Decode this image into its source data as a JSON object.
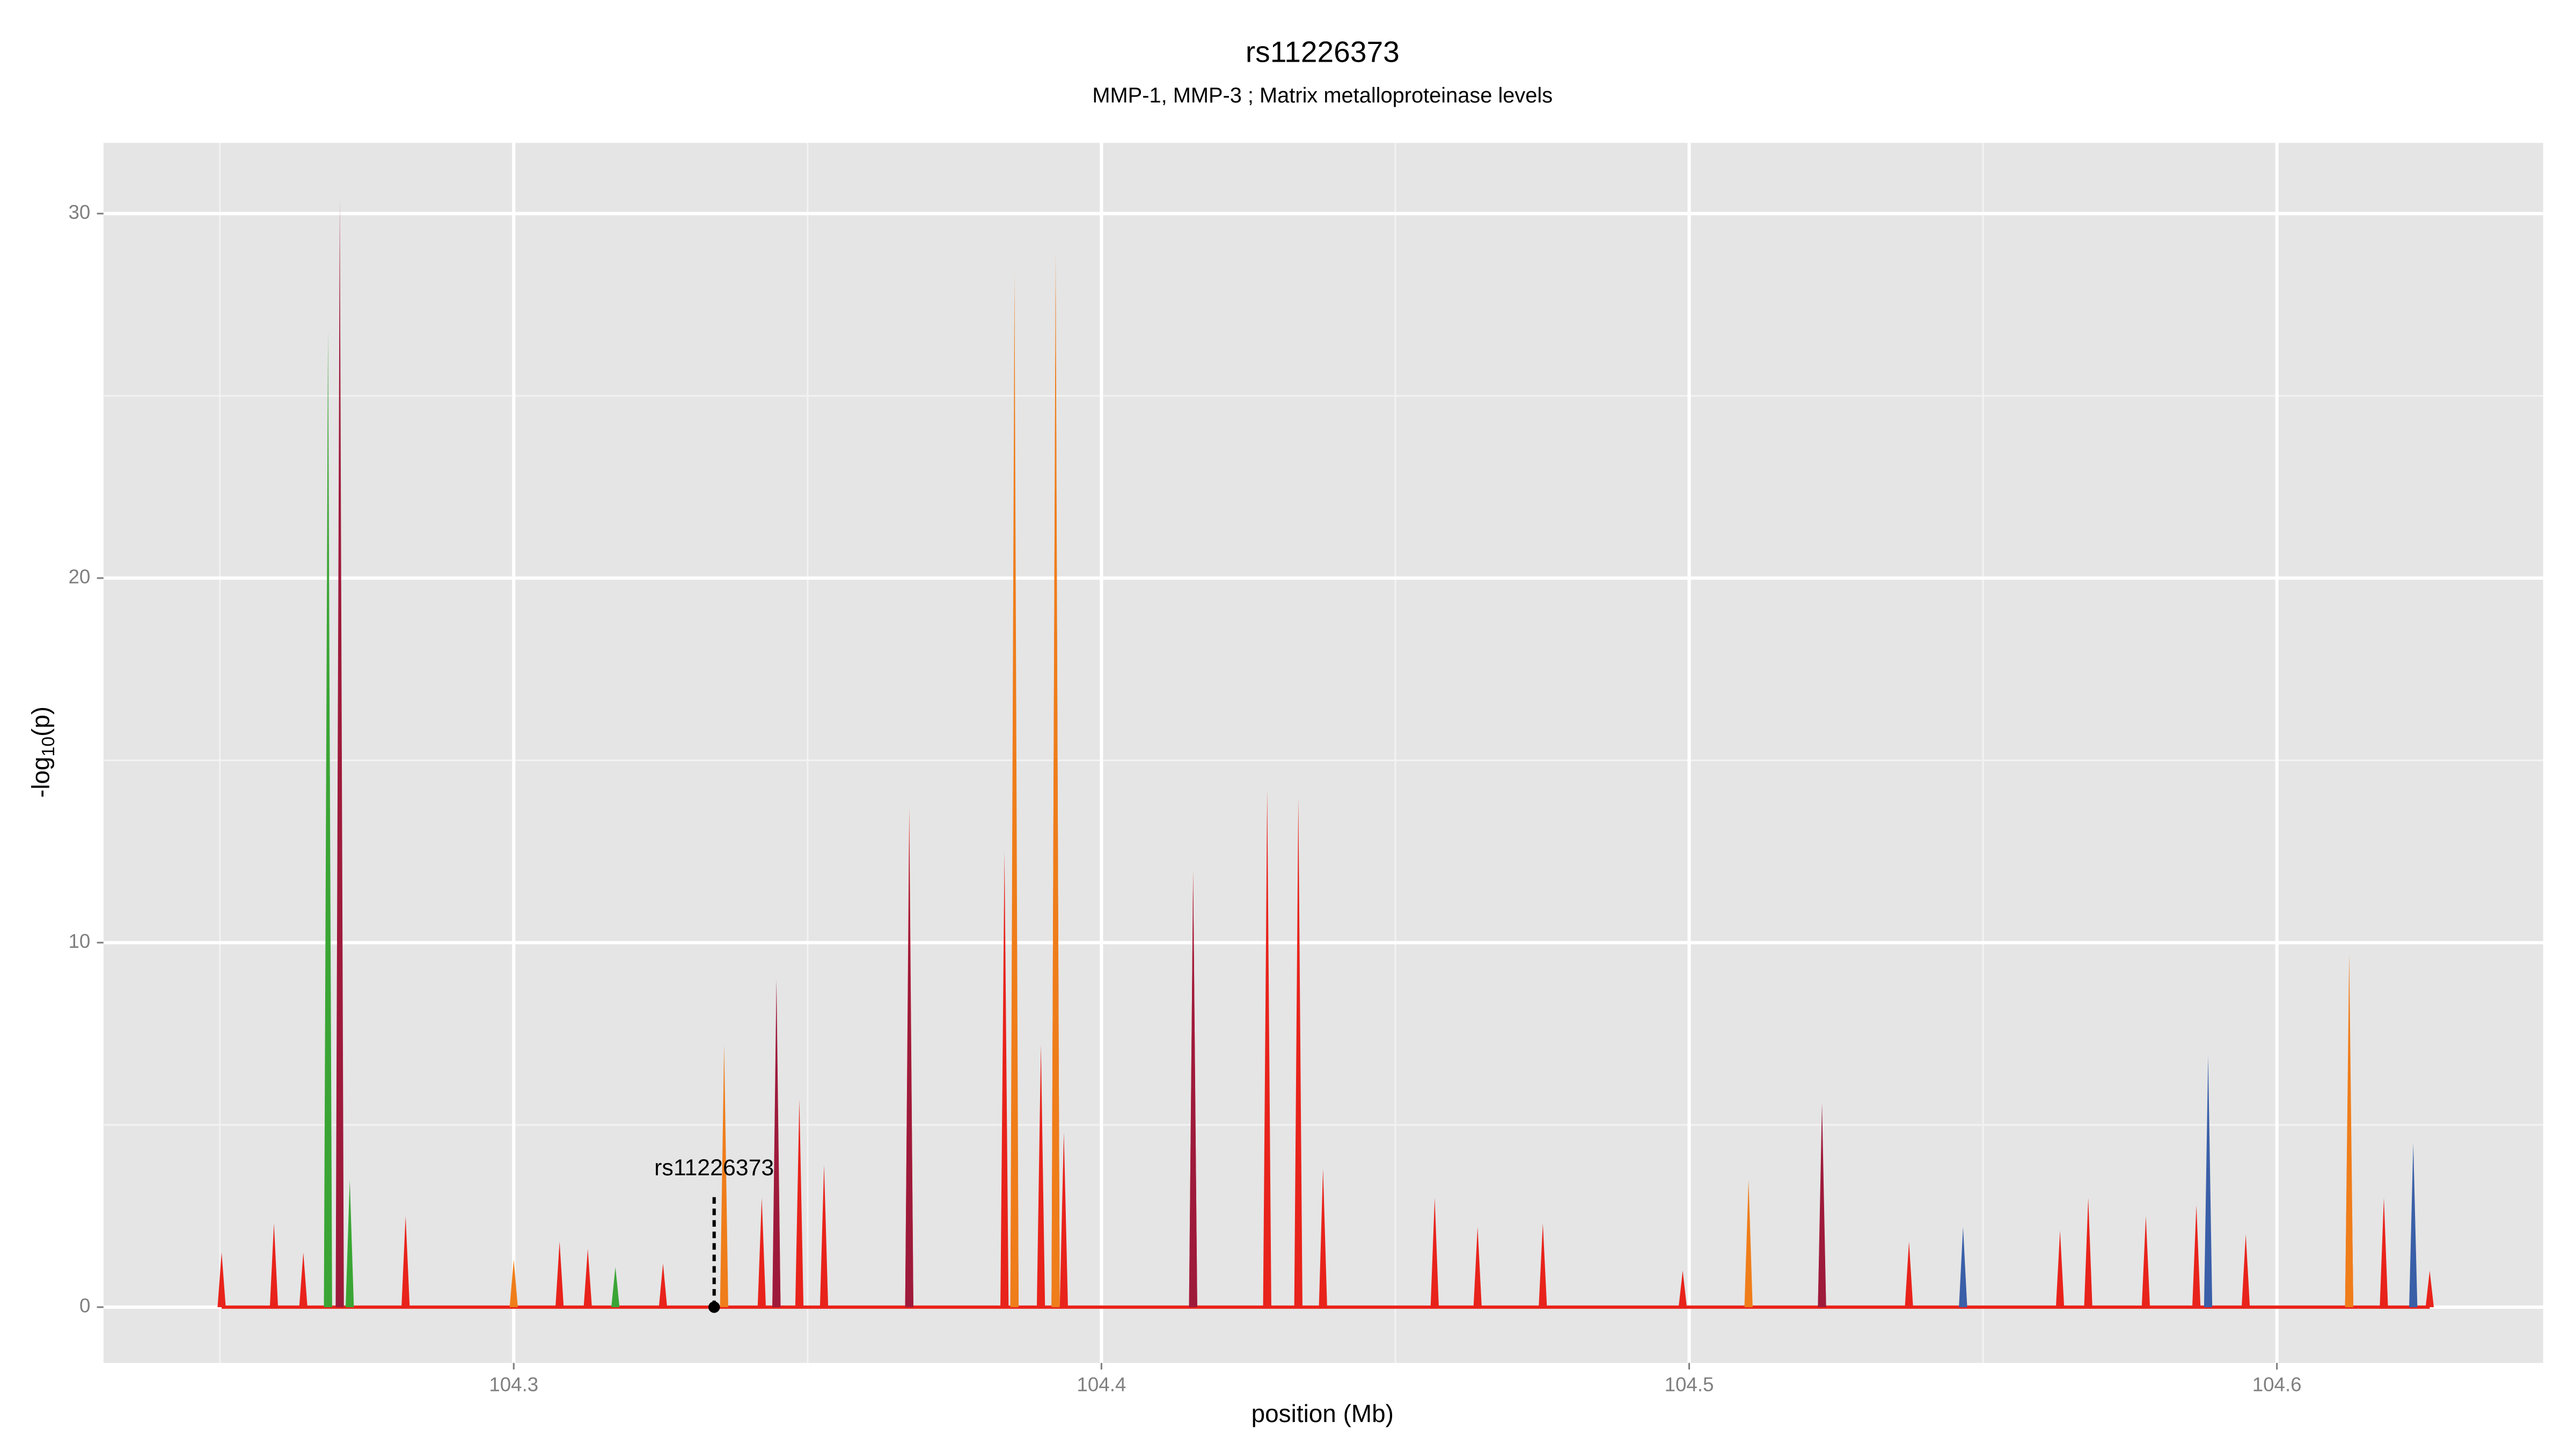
{
  "chart_data": {
    "type": "spike",
    "title": "rs11226373",
    "subtitle": "MMP-1, MMP-3 ; Matrix metalloproteinase levels",
    "xlabel": "position (Mb)",
    "ylabel": {
      "pre": "-log",
      "sub": "10",
      "post": "(p)"
    },
    "xlim": [
      104.2302,
      104.6453
    ],
    "ylim": [
      -1.53,
      31.94
    ],
    "xticks": [
      104.3,
      104.4,
      104.5,
      104.6
    ],
    "yticks": [
      0,
      10,
      20,
      30
    ],
    "xminor": [
      104.25,
      104.35,
      104.45,
      104.55
    ],
    "yminor": [
      5,
      15,
      25
    ],
    "grid": true,
    "series": [
      {
        "name": "red",
        "color": "#e8231b",
        "x": [
          104.2503,
          104.2592,
          104.2642,
          104.2816,
          104.3,
          104.3078,
          104.3126,
          104.3254,
          104.3422,
          104.3447,
          104.3486,
          104.3528,
          104.3673,
          104.3835,
          104.3852,
          104.3897,
          104.3922,
          104.3936,
          104.4156,
          104.4282,
          104.4335,
          104.4377,
          104.4567,
          104.464,
          104.4751,
          104.4989,
          104.5226,
          104.5374,
          104.5466,
          104.5631,
          104.5679,
          104.5777,
          104.5863,
          104.5947,
          104.6123,
          104.6182,
          104.626
        ],
        "values": [
          1.5,
          2.3,
          1.5,
          2.5,
          1.0,
          1.8,
          1.6,
          1.2,
          3.0,
          8.6,
          5.7,
          3.9,
          13.7,
          12.5,
          23.0,
          7.2,
          28.0,
          4.8,
          12.0,
          14.2,
          14.0,
          3.8,
          3.0,
          2.2,
          2.3,
          1.0,
          5.0,
          1.8,
          2.0,
          2.1,
          3.0,
          2.5,
          2.8,
          2.0,
          9.0,
          3.0,
          1.0
        ]
      },
      {
        "name": "orange",
        "color": "#ef7d1a",
        "x": [
          104.3,
          104.3358,
          104.3852,
          104.3922,
          104.5101,
          104.6123
        ],
        "values": [
          1.3,
          7.2,
          28.4,
          28.9,
          3.5,
          9.7
        ]
      },
      {
        "name": "green",
        "color": "#3aa534",
        "x": [
          104.2684,
          104.2721,
          104.3173
        ],
        "values": [
          26.8,
          3.5,
          1.1
        ]
      },
      {
        "name": "maroon",
        "color": "#9e1a3b",
        "x": [
          104.2704,
          104.3673,
          104.4156,
          104.5226,
          104.3447
        ],
        "values": [
          30.4,
          13.0,
          11.8,
          5.6,
          9.0
        ]
      },
      {
        "name": "blue",
        "color": "#3a5fa8",
        "x": [
          104.5466,
          104.5883,
          104.6232
        ],
        "values": [
          2.2,
          6.9,
          4.5
        ]
      }
    ],
    "annotation": {
      "label": "rs11226373",
      "x": 104.3341,
      "y": 0
    }
  }
}
